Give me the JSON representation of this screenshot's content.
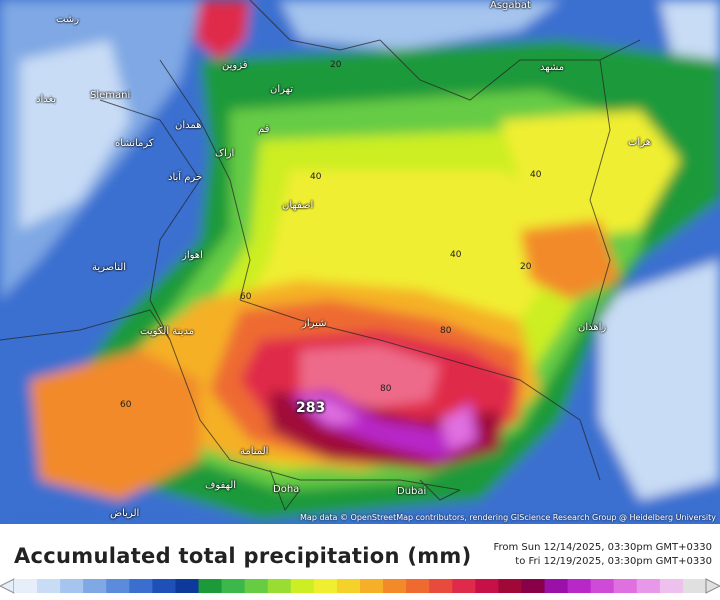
{
  "map": {
    "attribution": "Map data © OpenStreetMap contributors, rendering GIScience Research Group @ Heidelberg University",
    "peak_value": "283",
    "cities": [
      {
        "name": "Asgabat"
      },
      {
        "name": "Slemani"
      },
      {
        "name": "Doha"
      },
      {
        "name": "Dubai"
      },
      {
        "name": "تهران"
      },
      {
        "name": "مشهد"
      },
      {
        "name": "اصفهان"
      },
      {
        "name": "شیراز"
      },
      {
        "name": "همدان"
      },
      {
        "name": "کرمانشاه"
      },
      {
        "name": "اراک"
      },
      {
        "name": "خرم آباد"
      },
      {
        "name": "اهواز"
      },
      {
        "name": "الناصرية"
      },
      {
        "name": "مدينة الكويت"
      },
      {
        "name": "المنامة"
      },
      {
        "name": "الهفوف"
      },
      {
        "name": "الرياض"
      },
      {
        "name": "قزوین"
      },
      {
        "name": "هرات"
      },
      {
        "name": "زاهدان"
      },
      {
        "name": "رشت"
      },
      {
        "name": "قم"
      },
      {
        "name": "بغداد"
      }
    ],
    "contour_labels": [
      "20",
      "40",
      "60",
      "80"
    ]
  },
  "legend": {
    "title": "Accumulated total precipitation (mm)",
    "from": "From Sun 12/14/2025, 03:30pm GMT+0330",
    "to": "to Fri 12/19/2025, 03:30pm GMT+0330",
    "colors": [
      "#e6eefa",
      "#c8dcf5",
      "#a5c5ee",
      "#7fa8e4",
      "#5a8cdb",
      "#3a6fd0",
      "#1e50b8",
      "#0d3a9a",
      "#1c9a3a",
      "#3cb84a",
      "#66cc44",
      "#99dd33",
      "#ccee22",
      "#f0ee30",
      "#f5d22a",
      "#f5b028",
      "#f28a2a",
      "#ee6a30",
      "#e84a3c",
      "#e02a4a",
      "#c81048",
      "#a00838",
      "#880048",
      "#9a10a8",
      "#b828c8",
      "#d04ad8",
      "#e070e0",
      "#e898e8",
      "#eec0ee",
      "#e0e0e0"
    ]
  }
}
